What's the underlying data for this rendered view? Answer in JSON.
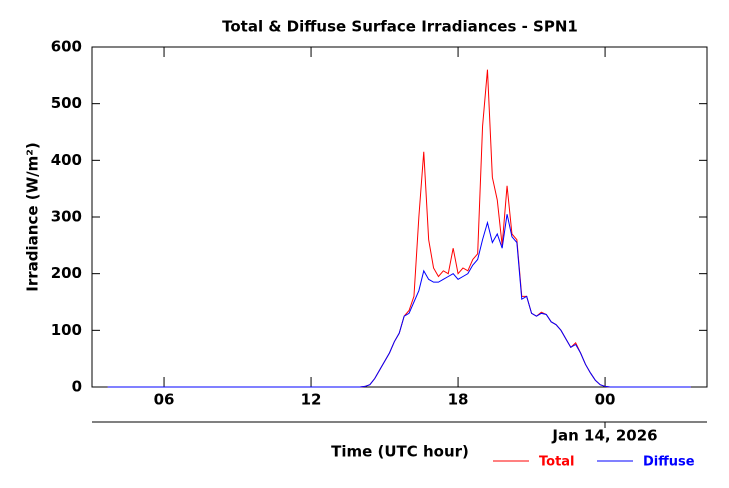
{
  "chart_data": {
    "type": "line",
    "title": "Total & Diffuse Surface Irradiances - SPN1",
    "x_label": "Time (UTC hour)",
    "y_label": "Irradiance (W/m²)",
    "date_annotation": "Jan 14, 2026",
    "x": [
      3.7,
      13.8,
      14.0,
      14.2,
      14.4,
      14.6,
      14.8,
      15.0,
      15.2,
      15.4,
      15.6,
      15.8,
      16.0,
      16.2,
      16.4,
      16.6,
      16.8,
      17.0,
      17.2,
      17.4,
      17.6,
      17.8,
      18.0,
      18.2,
      18.4,
      18.6,
      18.8,
      19.0,
      19.2,
      19.4,
      19.6,
      19.8,
      20.0,
      20.2,
      20.4,
      20.6,
      20.8,
      21.0,
      21.2,
      21.4,
      21.6,
      21.8,
      22.0,
      22.2,
      22.4,
      22.6,
      22.8,
      23.0,
      23.2,
      23.4,
      23.6,
      23.8,
      24.0,
      24.2,
      27.5
    ],
    "series": [
      {
        "name": "Total",
        "color": "#ff0000",
        "values": [
          0,
          0,
          0,
          1,
          4,
          15,
          30,
          45,
          60,
          80,
          95,
          125,
          135,
          160,
          300,
          415,
          260,
          210,
          195,
          205,
          200,
          245,
          200,
          210,
          205,
          225,
          235,
          460,
          560,
          370,
          330,
          250,
          355,
          270,
          260,
          160,
          160,
          130,
          125,
          132,
          128,
          115,
          110,
          100,
          85,
          70,
          78,
          60,
          40,
          25,
          12,
          4,
          1,
          0,
          0
        ]
      },
      {
        "name": "Diffuse",
        "color": "#0000ff",
        "values": [
          0,
          0,
          0,
          1,
          4,
          15,
          30,
          45,
          60,
          80,
          95,
          125,
          130,
          150,
          170,
          205,
          190,
          185,
          185,
          190,
          195,
          200,
          190,
          195,
          200,
          215,
          225,
          260,
          290,
          255,
          270,
          245,
          305,
          265,
          255,
          155,
          160,
          130,
          125,
          130,
          128,
          115,
          110,
          100,
          85,
          70,
          75,
          60,
          40,
          25,
          12,
          4,
          1,
          0,
          0
        ]
      }
    ],
    "xlim": [
      3.06,
      28.16
    ],
    "xticks": [
      {
        "value": 6,
        "label": "06"
      },
      12,
      18,
      {
        "value": 24,
        "label": "00"
      }
    ],
    "ylim": [
      0,
      600
    ],
    "yticks": [
      0,
      100,
      200,
      300,
      400,
      500,
      600
    ],
    "grid": false
  }
}
